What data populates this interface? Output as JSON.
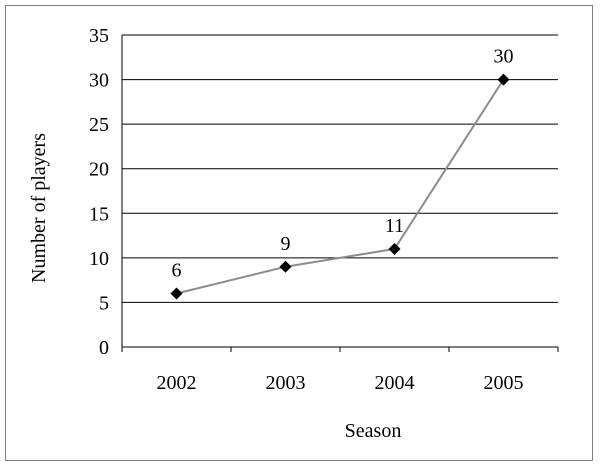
{
  "chart_data": {
    "type": "line",
    "categories": [
      "2002",
      "2003",
      "2004",
      "2005"
    ],
    "series": [
      {
        "values": [
          6,
          9,
          11,
          30
        ]
      }
    ],
    "data_labels": [
      "6",
      "9",
      "11",
      "30"
    ],
    "xlabel": "Season",
    "ylabel": "Number of players",
    "ylim": [
      0,
      35
    ],
    "yticks": [
      "0",
      "5",
      "10",
      "15",
      "20",
      "25",
      "30",
      "35"
    ],
    "grid": "horizontal",
    "line_color": "#8c8c8c",
    "marker": "diamond",
    "marker_color": "#000000"
  }
}
